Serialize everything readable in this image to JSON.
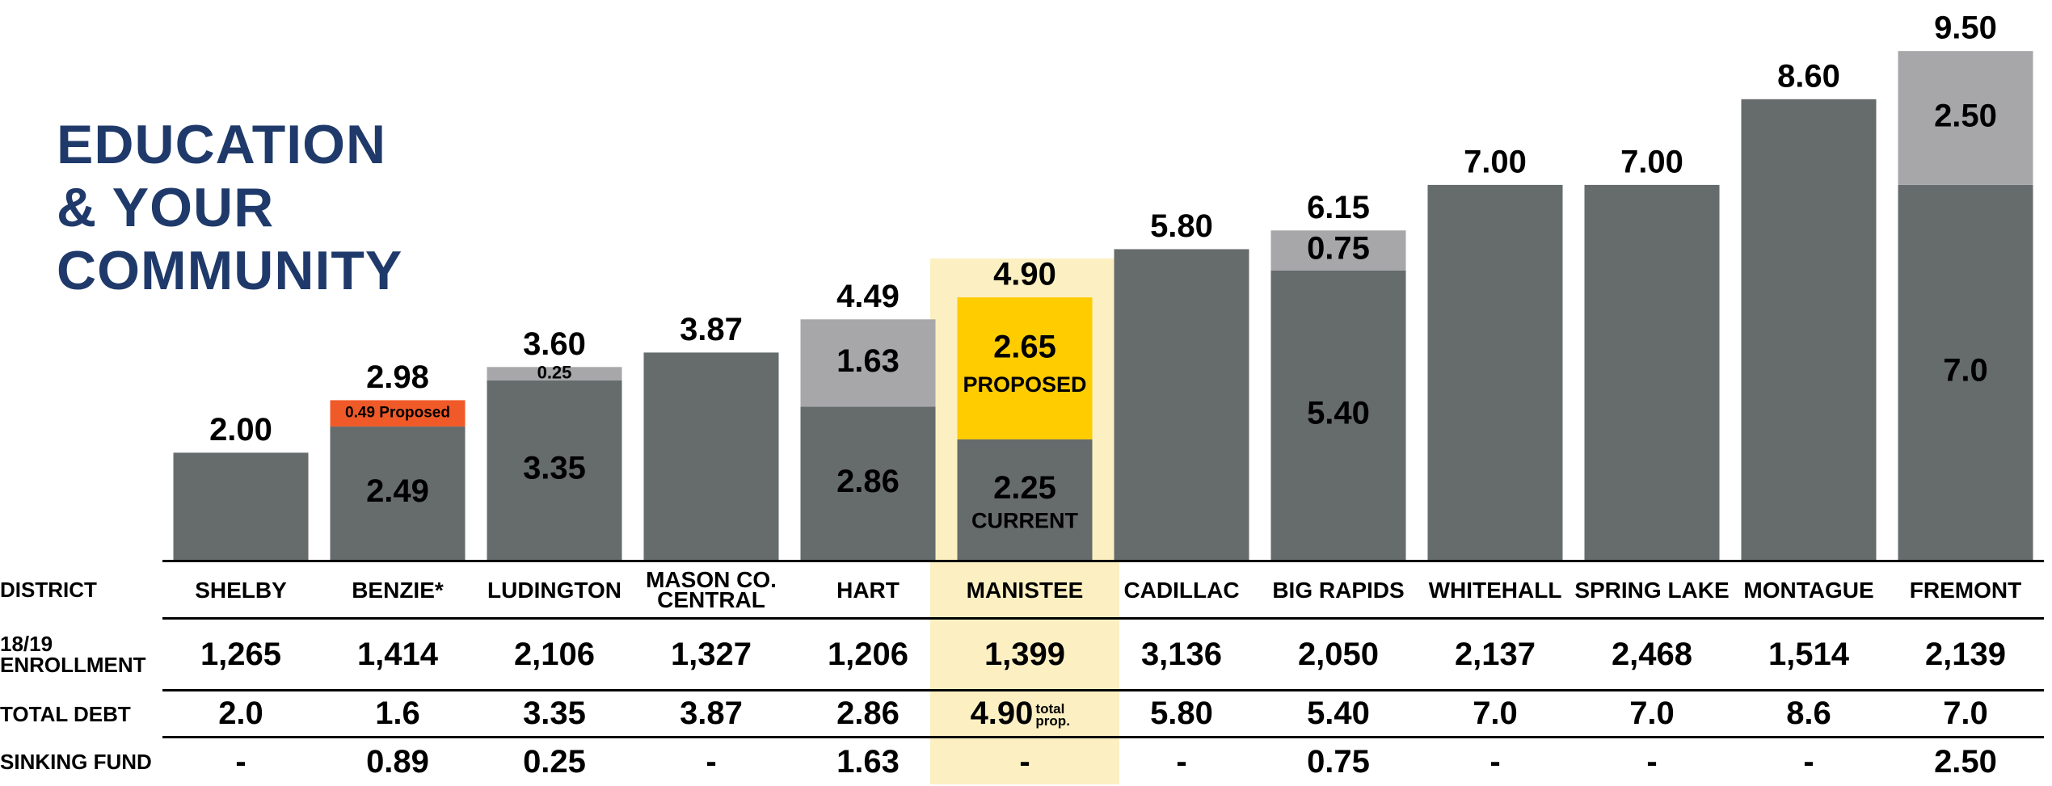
{
  "title_lines": [
    "EDUCATION",
    "& YOUR",
    "COMMUNITY"
  ],
  "chart_data": {
    "type": "stacked_bar",
    "categories": [
      "SHELBY",
      "BENZIE*",
      "LUDINGTON",
      "MASON CO. CENTRAL",
      "HART",
      "MANISTEE",
      "CADILLAC",
      "BIG RAPIDS",
      "WHITEHALL",
      "SPRING LAKE",
      "MONTAGUE",
      "FREMONT"
    ],
    "ylim": [
      0,
      10
    ],
    "series": [
      {
        "color": "#666b6b",
        "values": [
          2.0,
          2.49,
          3.35,
          3.87,
          2.86,
          2.25,
          5.8,
          5.4,
          7.0,
          7.0,
          8.6,
          7.0
        ],
        "value_labels": [
          null,
          "2.49",
          "3.35",
          null,
          "2.86",
          "2.25",
          null,
          "5.40",
          null,
          null,
          null,
          "7.0"
        ],
        "sublabels": [
          null,
          null,
          null,
          null,
          null,
          "CURRENT",
          null,
          null,
          null,
          null,
          null,
          null
        ]
      },
      {
        "colors": [
          null,
          "#f05a28",
          "#a7a7aa",
          null,
          "#a7a7aa",
          "#ffcc00",
          null,
          "#a7a7aa",
          null,
          null,
          null,
          "#a7a7aa"
        ],
        "values": [
          null,
          0.49,
          0.25,
          null,
          1.63,
          2.65,
          null,
          0.75,
          null,
          null,
          null,
          2.5
        ],
        "value_labels": [
          null,
          "0.49 Proposed",
          "0.25",
          null,
          "1.63",
          "2.65",
          null,
          "0.75",
          null,
          null,
          null,
          "2.50"
        ],
        "sublabels": [
          null,
          null,
          null,
          null,
          null,
          "PROPOSED",
          null,
          null,
          null,
          null,
          null,
          null
        ]
      }
    ],
    "totals": {
      "values": [
        2.0,
        2.98,
        3.6,
        3.87,
        4.49,
        4.9,
        5.8,
        6.15,
        7.0,
        7.0,
        8.6,
        9.5
      ],
      "value_labels": [
        "2.00",
        "2.98",
        "3.60",
        "3.87",
        "4.49",
        "4.90",
        "5.80",
        "6.15",
        "7.00",
        "7.00",
        "8.60",
        "9.50"
      ]
    }
  },
  "table": {
    "district_label": "DISTRICT",
    "rows": [
      {
        "label": "18/19 ENROLLMENT",
        "cells": [
          "1,265",
          "1,414",
          "2,106",
          "1,327",
          "1,206",
          "1,399",
          "3,136",
          "2,050",
          "2,137",
          "2,468",
          "1,514",
          "2,139"
        ]
      },
      {
        "label": "TOTAL DEBT",
        "cells": [
          "2.0",
          "1.6",
          "3.35",
          "3.87",
          "2.86",
          {
            "text": "4.90",
            "note": "total prop."
          },
          "5.80",
          "5.40",
          "7.0",
          "7.0",
          "8.6",
          "7.0"
        ]
      },
      {
        "label": "SINKING FUND",
        "cells": [
          "-",
          "0.89",
          "0.25",
          "-",
          "1.63",
          "-",
          "-",
          "0.75",
          "-",
          "-",
          "-",
          "2.50"
        ]
      }
    ]
  }
}
